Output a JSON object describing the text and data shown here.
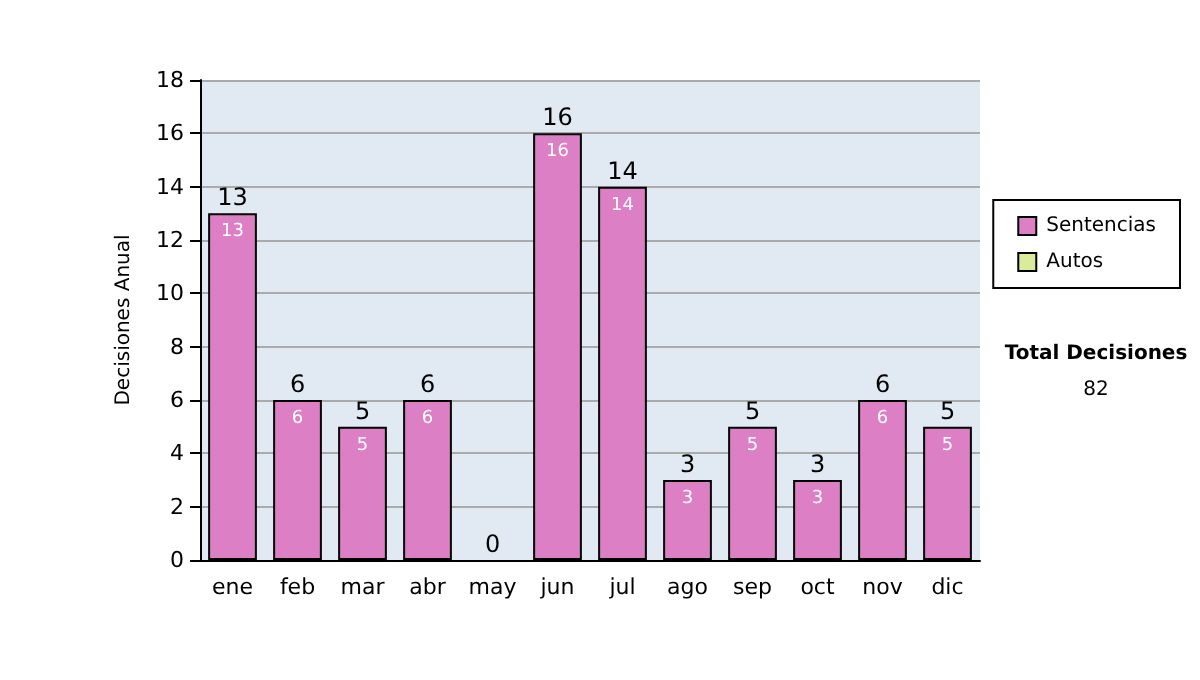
{
  "chart_data": {
    "type": "bar",
    "ylabel": "Decisiones Anual",
    "categories": [
      "ene",
      "feb",
      "mar",
      "abr",
      "may",
      "jun",
      "jul",
      "ago",
      "sep",
      "oct",
      "nov",
      "dic"
    ],
    "series": [
      {
        "name": "Sentencias",
        "color": "#dd7fc4",
        "values": [
          13,
          6,
          5,
          6,
          0,
          16,
          14,
          3,
          5,
          3,
          6,
          5
        ],
        "value_labels": [
          "13",
          "6",
          "5",
          "6",
          null,
          "16",
          "14",
          "3",
          "5",
          "3",
          "6",
          "5"
        ]
      },
      {
        "name": "Autos",
        "color": "#d9ec9b",
        "values": [
          0,
          0,
          0,
          0,
          0,
          0,
          0,
          0,
          0,
          0,
          0,
          0
        ]
      }
    ],
    "stacked": true,
    "totals": [
      "13",
      "6",
      "5",
      "6",
      "0",
      "16",
      "14",
      "3",
      "5",
      "3",
      "6",
      "5"
    ],
    "ylim": [
      0,
      18
    ],
    "yticks": [
      0,
      2,
      4,
      6,
      8,
      10,
      12,
      14,
      16,
      18
    ],
    "grid": "y",
    "legend": "right",
    "annotations": [
      "Total Decisiones",
      "82"
    ]
  }
}
